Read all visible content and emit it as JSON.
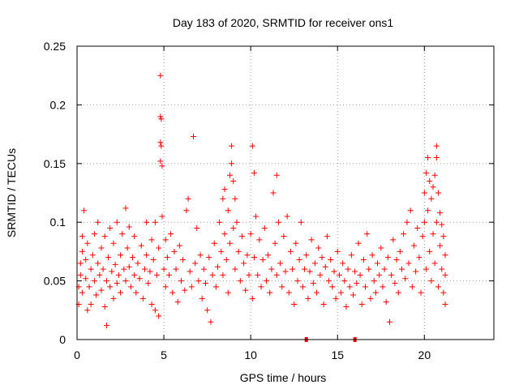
{
  "chart_data": {
    "type": "scatter",
    "title": "Day 183 of 2020, SRMTID for receiver ons1",
    "xlabel": "GPS time / hours",
    "ylabel": "SRMTID / TECUs",
    "xlim": [
      0,
      24
    ],
    "ylim": [
      0,
      0.25
    ],
    "xticks": [
      0,
      5,
      10,
      15,
      20
    ],
    "xtick_labels": [
      "0",
      "5",
      "10",
      "15",
      "20"
    ],
    "yticks": [
      0,
      0.05,
      0.1,
      0.15,
      0.2,
      0.25
    ],
    "ytick_labels": [
      "0",
      "0.05",
      "0.1",
      "0.15",
      "0.2",
      "0.25"
    ],
    "grid": true,
    "marker": "plus",
    "color": "#ff0000",
    "series": [
      {
        "name": "SRMTID",
        "points": [
          [
            0.1,
            0.03
          ],
          [
            0.1,
            0.045
          ],
          [
            0.2,
            0.055
          ],
          [
            0.2,
            0.065
          ],
          [
            0.3,
            0.04
          ],
          [
            0.3,
            0.075
          ],
          [
            0.3,
            0.088
          ],
          [
            0.4,
            0.11
          ],
          [
            0.5,
            0.052
          ],
          [
            0.5,
            0.068
          ],
          [
            0.6,
            0.025
          ],
          [
            0.6,
            0.082
          ],
          [
            0.7,
            0.045
          ],
          [
            0.8,
            0.06
          ],
          [
            0.8,
            0.03
          ],
          [
            0.9,
            0.072
          ],
          [
            1.0,
            0.05
          ],
          [
            1.0,
            0.09
          ],
          [
            1.1,
            0.038
          ],
          [
            1.2,
            0.065
          ],
          [
            1.2,
            0.1
          ],
          [
            1.3,
            0.055
          ],
          [
            1.4,
            0.042
          ],
          [
            1.4,
            0.078
          ],
          [
            1.5,
            0.06
          ],
          [
            1.6,
            0.028
          ],
          [
            1.6,
            0.088
          ],
          [
            1.7,
            0.012
          ],
          [
            1.7,
            0.05
          ],
          [
            1.8,
            0.07
          ],
          [
            1.9,
            0.045
          ],
          [
            1.9,
            0.095
          ],
          [
            2.0,
            0.058
          ],
          [
            2.1,
            0.035
          ],
          [
            2.1,
            0.082
          ],
          [
            2.2,
            0.064
          ],
          [
            2.3,
            0.048
          ],
          [
            2.3,
            0.1
          ],
          [
            2.4,
            0.055
          ],
          [
            2.5,
            0.072
          ],
          [
            2.5,
            0.04
          ],
          [
            2.6,
            0.09
          ],
          [
            2.7,
            0.06
          ],
          [
            2.8,
            0.112
          ],
          [
            2.8,
            0.05
          ],
          [
            2.9,
            0.078
          ],
          [
            3.0,
            0.096
          ],
          [
            3.0,
            0.062
          ],
          [
            3.1,
            0.045
          ],
          [
            3.2,
            0.07
          ],
          [
            3.3,
            0.055
          ],
          [
            3.3,
            0.088
          ],
          [
            3.4,
            0.04
          ],
          [
            3.5,
            0.065
          ],
          [
            3.6,
            0.052
          ],
          [
            3.7,
            0.08
          ],
          [
            3.8,
            0.035
          ],
          [
            3.9,
            0.06
          ],
          [
            4.0,
            0.072
          ],
          [
            4.0,
            0.1
          ],
          [
            4.1,
            0.048
          ],
          [
            4.2,
            0.058
          ],
          [
            4.3,
            0.03
          ],
          [
            4.3,
            0.085
          ],
          [
            4.4,
            0.068
          ],
          [
            4.5,
            0.025
          ],
          [
            4.5,
            0.1
          ],
          [
            4.6,
            0.055
          ],
          [
            4.7,
            0.02
          ],
          [
            4.7,
            0.078
          ],
          [
            4.8,
            0.225
          ],
          [
            4.8,
            0.19
          ],
          [
            4.85,
            0.188
          ],
          [
            4.8,
            0.168
          ],
          [
            4.85,
            0.165
          ],
          [
            4.8,
            0.152
          ],
          [
            4.9,
            0.148
          ],
          [
            4.9,
            0.105
          ],
          [
            5.0,
            0.06
          ],
          [
            5.1,
            0.085
          ],
          [
            5.1,
            0.045
          ],
          [
            5.2,
            0.07
          ],
          [
            5.3,
            0.055
          ],
          [
            5.4,
            0.09
          ],
          [
            5.5,
            0.04
          ],
          [
            5.6,
            0.075
          ],
          [
            5.7,
            0.06
          ],
          [
            5.8,
            0.032
          ],
          [
            5.9,
            0.08
          ],
          [
            6.0,
            0.05
          ],
          [
            6.1,
            0.068
          ],
          [
            6.2,
            0.042
          ],
          [
            6.3,
            0.11
          ],
          [
            6.4,
            0.12
          ],
          [
            6.5,
            0.058
          ],
          [
            6.6,
            0.045
          ],
          [
            6.7,
            0.173
          ],
          [
            6.8,
            0.065
          ],
          [
            6.9,
            0.095
          ],
          [
            7.0,
            0.05
          ],
          [
            7.1,
            0.072
          ],
          [
            7.2,
            0.035
          ],
          [
            7.3,
            0.06
          ],
          [
            7.4,
            0.048
          ],
          [
            7.5,
            0.025
          ],
          [
            7.6,
            0.07
          ],
          [
            7.7,
            0.015
          ],
          [
            7.8,
            0.055
          ],
          [
            7.9,
            0.082
          ],
          [
            8.0,
            0.045
          ],
          [
            8.1,
            0.062
          ],
          [
            8.2,
            0.1
          ],
          [
            8.3,
            0.075
          ],
          [
            8.4,
            0.12
          ],
          [
            8.4,
            0.055
          ],
          [
            8.5,
            0.128
          ],
          [
            8.5,
            0.09
          ],
          [
            8.6,
            0.068
          ],
          [
            8.7,
            0.11
          ],
          [
            8.7,
            0.04
          ],
          [
            8.8,
            0.14
          ],
          [
            8.8,
            0.082
          ],
          [
            8.9,
            0.165
          ],
          [
            8.9,
            0.15
          ],
          [
            9.0,
            0.135
          ],
          [
            9.0,
            0.095
          ],
          [
            9.1,
            0.12
          ],
          [
            9.1,
            0.06
          ],
          [
            9.2,
            0.1
          ],
          [
            9.3,
            0.075
          ],
          [
            9.4,
            0.05
          ],
          [
            9.5,
            0.088
          ],
          [
            9.6,
            0.065
          ],
          [
            9.7,
            0.042
          ],
          [
            9.8,
            0.072
          ],
          [
            9.9,
            0.055
          ],
          [
            10.0,
            0.09
          ],
          [
            10.1,
            0.035
          ],
          [
            10.1,
            0.165
          ],
          [
            10.2,
            0.142
          ],
          [
            10.2,
            0.07
          ],
          [
            10.3,
            0.105
          ],
          [
            10.4,
            0.055
          ],
          [
            10.5,
            0.085
          ],
          [
            10.6,
            0.045
          ],
          [
            10.7,
            0.068
          ],
          [
            10.8,
            0.095
          ],
          [
            10.9,
            0.05
          ],
          [
            11.0,
            0.072
          ],
          [
            11.1,
            0.04
          ],
          [
            11.2,
            0.06
          ],
          [
            11.3,
            0.125
          ],
          [
            11.4,
            0.082
          ],
          [
            11.5,
            0.14
          ],
          [
            11.5,
            0.055
          ],
          [
            11.6,
            0.1
          ],
          [
            11.7,
            0.065
          ],
          [
            11.8,
            0.045
          ],
          [
            11.9,
            0.088
          ],
          [
            12.0,
            0.058
          ],
          [
            12.1,
            0.105
          ],
          [
            12.2,
            0.04
          ],
          [
            12.3,
            0.075
          ],
          [
            12.4,
            0.06
          ],
          [
            12.5,
            0.03
          ],
          [
            12.6,
            0.082
          ],
          [
            12.7,
            0.05
          ],
          [
            12.8,
            0.068
          ],
          [
            12.9,
            0.1
          ],
          [
            13.0,
            0.045
          ],
          [
            13.1,
            0.06
          ],
          [
            13.2,
            0.072
          ],
          [
            13.3,
            0.035
          ],
          [
            13.4,
            0.058
          ],
          [
            13.5,
            0.085
          ],
          [
            13.6,
            0.048
          ],
          [
            13.7,
            0.065
          ],
          [
            13.8,
            0.04
          ],
          [
            13.9,
            0.078
          ],
          [
            14.0,
            0.055
          ],
          [
            14.1,
            0.07
          ],
          [
            14.2,
            0.03
          ],
          [
            14.3,
            0.062
          ],
          [
            14.4,
            0.088
          ],
          [
            14.5,
            0.05
          ],
          [
            14.6,
            0.068
          ],
          [
            14.7,
            0.045
          ],
          [
            14.8,
            0.058
          ],
          [
            14.9,
            0.035
          ],
          [
            15.0,
            0.075
          ],
          [
            15.1,
            0.055
          ],
          [
            15.2,
            0.04
          ],
          [
            15.3,
            0.065
          ],
          [
            15.4,
            0.05
          ],
          [
            15.5,
            0.028
          ],
          [
            15.6,
            0.06
          ],
          [
            15.7,
            0.045
          ],
          [
            15.8,
            0.072
          ],
          [
            15.9,
            0.038
          ],
          [
            16.0,
            0.058
          ],
          [
            16.1,
            0.048
          ],
          [
            16.2,
            0.082
          ],
          [
            16.3,
            0.055
          ],
          [
            16.4,
            0.03
          ],
          [
            16.5,
            0.068
          ],
          [
            16.6,
            0.045
          ],
          [
            16.7,
            0.09
          ],
          [
            16.8,
            0.06
          ],
          [
            16.9,
            0.035
          ],
          [
            17.0,
            0.072
          ],
          [
            17.1,
            0.05
          ],
          [
            17.2,
            0.04
          ],
          [
            17.3,
            0.065
          ],
          [
            17.4,
            0.055
          ],
          [
            17.5,
            0.078
          ],
          [
            17.6,
            0.045
          ],
          [
            17.7,
            0.06
          ],
          [
            17.8,
            0.032
          ],
          [
            17.9,
            0.07
          ],
          [
            18.0,
            0.015
          ],
          [
            18.1,
            0.055
          ],
          [
            18.2,
            0.085
          ],
          [
            18.3,
            0.048
          ],
          [
            18.4,
            0.068
          ],
          [
            18.5,
            0.04
          ],
          [
            18.6,
            0.075
          ],
          [
            18.7,
            0.06
          ],
          [
            18.8,
            0.09
          ],
          [
            18.9,
            0.052
          ],
          [
            19.0,
            0.1
          ],
          [
            19.1,
            0.065
          ],
          [
            19.2,
            0.11
          ],
          [
            19.3,
            0.045
          ],
          [
            19.4,
            0.08
          ],
          [
            19.5,
            0.058
          ],
          [
            19.6,
            0.095
          ],
          [
            19.7,
            0.07
          ],
          [
            19.8,
            0.04
          ],
          [
            19.9,
            0.088
          ],
          [
            20.0,
            0.1
          ],
          [
            20.0,
            0.125
          ],
          [
            20.1,
            0.142
          ],
          [
            20.1,
            0.06
          ],
          [
            20.2,
            0.155
          ],
          [
            20.2,
            0.11
          ],
          [
            20.3,
            0.135
          ],
          [
            20.3,
            0.075
          ],
          [
            20.4,
            0.12
          ],
          [
            20.4,
            0.05
          ],
          [
            20.5,
            0.13
          ],
          [
            20.5,
            0.09
          ],
          [
            20.6,
            0.14
          ],
          [
            20.6,
            0.065
          ],
          [
            20.7,
            0.165
          ],
          [
            20.7,
            0.155
          ],
          [
            20.7,
            0.1
          ],
          [
            20.8,
            0.125
          ],
          [
            20.8,
            0.045
          ],
          [
            20.9,
            0.108
          ],
          [
            20.9,
            0.08
          ],
          [
            21.0,
            0.098
          ],
          [
            21.0,
            0.06
          ],
          [
            21.1,
            0.088
          ],
          [
            21.1,
            0.04
          ],
          [
            21.2,
            0.072
          ],
          [
            21.2,
            0.03
          ],
          [
            21.2,
            0.055
          ]
        ]
      }
    ],
    "bottom_markers_x": [
      13.2,
      16.0
    ]
  }
}
